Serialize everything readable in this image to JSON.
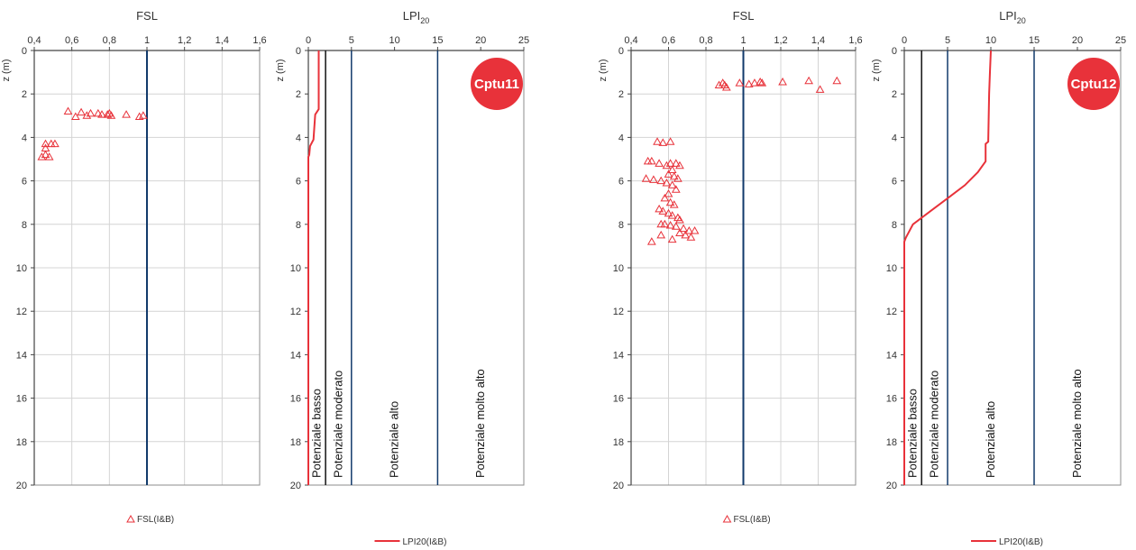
{
  "chart_data": [
    {
      "id": "cptu11-fsl",
      "type": "scatter",
      "title": "FSL",
      "xlim": [
        0.4,
        1.6
      ],
      "ylim": [
        0,
        20
      ],
      "xticks": [
        "0,4",
        "0,6",
        "0,8",
        "1",
        "1,2",
        "1,4",
        "1,6"
      ],
      "yticks": [
        "0",
        "2",
        "4",
        "6",
        "8",
        "10",
        "12",
        "14",
        "16",
        "18",
        "20"
      ],
      "ylabel": "z (m)",
      "grid": true,
      "reference_x": 1,
      "marker_color": "#e8323a",
      "reference_color": "#123a6b",
      "legend": "FSL(I&B)",
      "series": [
        {
          "name": "FSL(I&B)",
          "points": [
            [
              0.58,
              2.8
            ],
            [
              0.62,
              3.05
            ],
            [
              0.65,
              2.85
            ],
            [
              0.68,
              3.0
            ],
            [
              0.7,
              2.9
            ],
            [
              0.74,
              2.9
            ],
            [
              0.76,
              2.95
            ],
            [
              0.79,
              2.95
            ],
            [
              0.8,
              2.9
            ],
            [
              0.81,
              3.0
            ],
            [
              0.89,
              2.95
            ],
            [
              0.96,
              3.05
            ],
            [
              0.98,
              3.0
            ],
            [
              0.46,
              4.3
            ],
            [
              0.49,
              4.3
            ],
            [
              0.51,
              4.3
            ],
            [
              0.46,
              4.5
            ],
            [
              0.46,
              4.8
            ],
            [
              0.44,
              4.9
            ],
            [
              0.48,
              4.9
            ]
          ]
        }
      ]
    },
    {
      "id": "cptu11-lpi",
      "type": "line",
      "title": "LPI",
      "title_sub": "20",
      "xlim": [
        0,
        25
      ],
      "ylim": [
        0,
        20
      ],
      "xticks": [
        "0",
        "5",
        "10",
        "15",
        "20",
        "25"
      ],
      "yticks": [
        "0",
        "2",
        "4",
        "6",
        "8",
        "10",
        "12",
        "14",
        "16",
        "18",
        "20"
      ],
      "ylabel": "z (m)",
      "grid": false,
      "line_color": "#e8323a",
      "band_lines": [
        {
          "x": 2,
          "color": "#111111"
        },
        {
          "x": 5,
          "color": "#123a6b"
        },
        {
          "x": 15,
          "color": "#123a6b"
        }
      ],
      "band_labels": [
        {
          "text": "Potenziale basso",
          "x": 1
        },
        {
          "text": "Potenziale moderato",
          "x": 3.5
        },
        {
          "text": "Potenziale alto",
          "x": 10
        },
        {
          "text": "Potenziale molto alto",
          "x": 20
        }
      ],
      "badge": "Cptu11",
      "badge_color": "#e8323a",
      "legend": "LPI20(I&B)",
      "series": [
        {
          "name": "LPI20(I&B)",
          "points": [
            [
              1.2,
              0.0
            ],
            [
              1.2,
              2.7
            ],
            [
              0.8,
              2.95
            ],
            [
              0.6,
              4.1
            ],
            [
              0.2,
              4.4
            ],
            [
              0.1,
              4.8
            ],
            [
              0.0,
              4.9
            ],
            [
              0.0,
              20.0
            ]
          ]
        }
      ]
    },
    {
      "id": "cptu12-fsl",
      "type": "scatter",
      "title": "FSL",
      "xlim": [
        0.4,
        1.6
      ],
      "ylim": [
        0,
        20
      ],
      "xticks": [
        "0,4",
        "0,6",
        "0,8",
        "1",
        "1,2",
        "1,4",
        "1,6"
      ],
      "yticks": [
        "0",
        "2",
        "4",
        "6",
        "8",
        "10",
        "12",
        "14",
        "16",
        "18",
        "20"
      ],
      "ylabel": "z (m)",
      "grid": true,
      "reference_x": 1,
      "marker_color": "#e8323a",
      "reference_color": "#123a6b",
      "legend": "FSL(I&B)",
      "series": [
        {
          "name": "FSL(I&B)",
          "points": [
            [
              0.87,
              1.6
            ],
            [
              0.89,
              1.5
            ],
            [
              0.9,
              1.6
            ],
            [
              0.91,
              1.7
            ],
            [
              0.98,
              1.5
            ],
            [
              1.03,
              1.55
            ],
            [
              1.06,
              1.5
            ],
            [
              1.09,
              1.45
            ],
            [
              1.1,
              1.5
            ],
            [
              1.21,
              1.45
            ],
            [
              1.35,
              1.4
            ],
            [
              1.41,
              1.8
            ],
            [
              1.5,
              1.4
            ],
            [
              0.54,
              4.2
            ],
            [
              0.57,
              4.25
            ],
            [
              0.61,
              4.2
            ],
            [
              0.49,
              5.1
            ],
            [
              0.51,
              5.1
            ],
            [
              0.55,
              5.2
            ],
            [
              0.59,
              5.3
            ],
            [
              0.61,
              5.2
            ],
            [
              0.64,
              5.2
            ],
            [
              0.66,
              5.3
            ],
            [
              0.62,
              5.5
            ],
            [
              0.6,
              5.7
            ],
            [
              0.63,
              5.8
            ],
            [
              0.65,
              5.9
            ],
            [
              0.48,
              5.9
            ],
            [
              0.52,
              5.95
            ],
            [
              0.56,
              6.0
            ],
            [
              0.59,
              6.1
            ],
            [
              0.62,
              6.2
            ],
            [
              0.64,
              6.4
            ],
            [
              0.6,
              6.6
            ],
            [
              0.58,
              6.8
            ],
            [
              0.61,
              7.0
            ],
            [
              0.63,
              7.1
            ],
            [
              0.55,
              7.3
            ],
            [
              0.57,
              7.4
            ],
            [
              0.6,
              7.5
            ],
            [
              0.62,
              7.6
            ],
            [
              0.65,
              7.7
            ],
            [
              0.66,
              7.8
            ],
            [
              0.56,
              8.0
            ],
            [
              0.58,
              8.0
            ],
            [
              0.61,
              8.05
            ],
            [
              0.64,
              8.1
            ],
            [
              0.68,
              8.2
            ],
            [
              0.71,
              8.3
            ],
            [
              0.74,
              8.3
            ],
            [
              0.66,
              8.4
            ],
            [
              0.69,
              8.5
            ],
            [
              0.72,
              8.6
            ],
            [
              0.56,
              8.5
            ],
            [
              0.62,
              8.7
            ],
            [
              0.51,
              8.8
            ]
          ]
        }
      ]
    },
    {
      "id": "cptu12-lpi",
      "type": "line",
      "title": "LPI",
      "title_sub": "20",
      "xlim": [
        0,
        25
      ],
      "ylim": [
        0,
        20
      ],
      "xticks": [
        "0",
        "5",
        "10",
        "15",
        "20",
        "25"
      ],
      "yticks": [
        "0",
        "2",
        "4",
        "6",
        "8",
        "10",
        "12",
        "14",
        "16",
        "18",
        "20"
      ],
      "ylabel": "z (m)",
      "grid": false,
      "line_color": "#e8323a",
      "band_lines": [
        {
          "x": 2,
          "color": "#111111"
        },
        {
          "x": 5,
          "color": "#123a6b"
        },
        {
          "x": 15,
          "color": "#123a6b"
        }
      ],
      "band_labels": [
        {
          "text": "Potenziale basso",
          "x": 1
        },
        {
          "text": "Potenziale moderato",
          "x": 3.5
        },
        {
          "text": "Potenziale alto",
          "x": 10
        },
        {
          "text": "Potenziale molto alto",
          "x": 20
        }
      ],
      "badge": "Cptu12",
      "badge_color": "#e8323a",
      "legend": "LPI20(I&B)",
      "series": [
        {
          "name": "LPI20(I&B)",
          "points": [
            [
              10.0,
              0.0
            ],
            [
              9.9,
              1.0
            ],
            [
              9.8,
              2.0
            ],
            [
              9.7,
              4.2
            ],
            [
              9.4,
              4.3
            ],
            [
              9.4,
              5.1
            ],
            [
              8.5,
              5.6
            ],
            [
              7.0,
              6.2
            ],
            [
              5.0,
              6.8
            ],
            [
              3.0,
              7.4
            ],
            [
              1.0,
              8.0
            ],
            [
              0.2,
              8.6
            ],
            [
              0.0,
              8.8
            ],
            [
              0.0,
              20.0
            ]
          ]
        }
      ]
    }
  ]
}
